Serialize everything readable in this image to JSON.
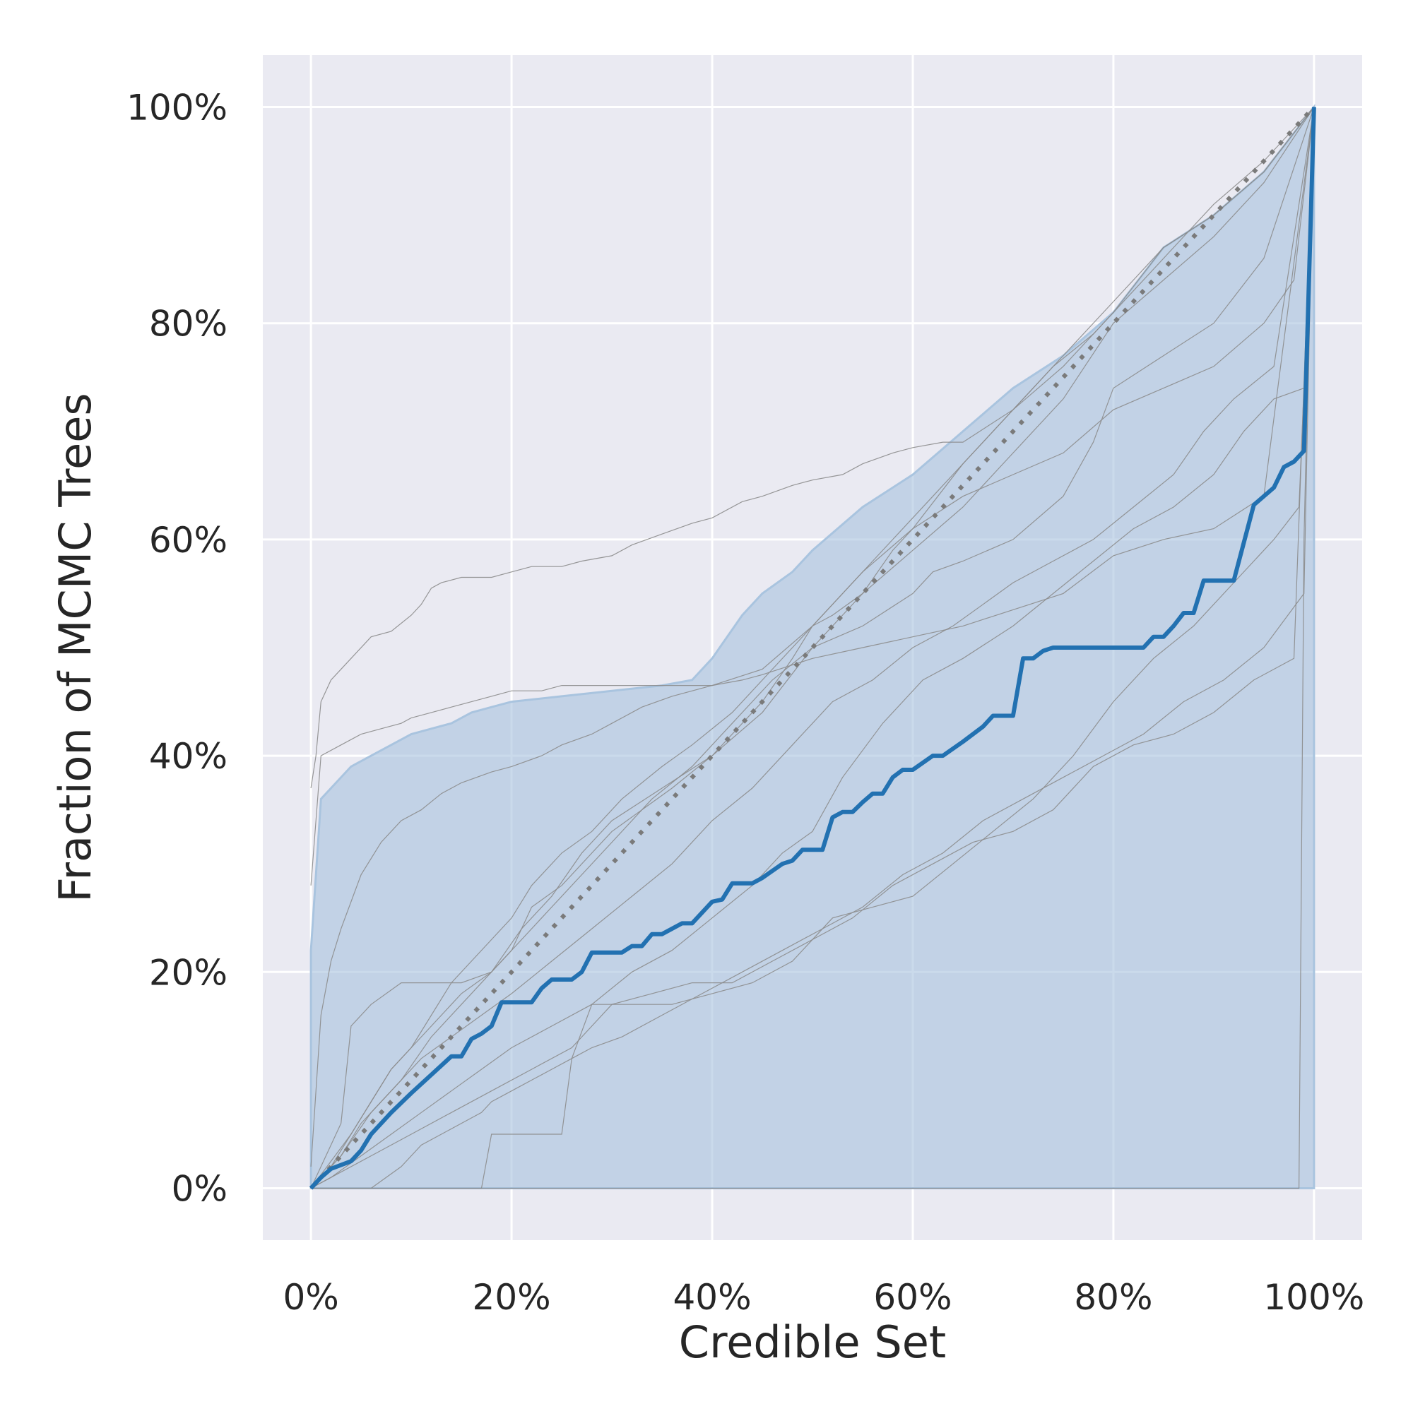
{
  "chart_data": {
    "type": "line",
    "title": "",
    "xlabel": "Credible Set",
    "ylabel": "Fraction of MCMC Trees",
    "xlim": [
      -0.048,
      1.048
    ],
    "ylim": [
      -0.048,
      1.048
    ],
    "x_ticks": [
      0,
      0.2,
      0.4,
      0.6,
      0.8,
      1.0
    ],
    "x_tick_labels": [
      "0%",
      "20%",
      "40%",
      "60%",
      "80%",
      "100%"
    ],
    "y_ticks": [
      0,
      0.2,
      0.4,
      0.6,
      0.8,
      1.0
    ],
    "y_tick_labels": [
      "0%",
      "20%",
      "40%",
      "60%",
      "80%",
      "100%"
    ],
    "grid": true,
    "legend": "none",
    "colors": {
      "plot_background": "#eaeaf2",
      "grid": "#ffffff",
      "mean_line": "#2271b1",
      "band_fill": "#a9c4df",
      "replicate_lines": "#8c8c8c",
      "reference_line": "#7a7a7a"
    },
    "reference_line": {
      "style": "dotted",
      "x": [
        0,
        1
      ],
      "y": [
        0,
        1
      ]
    },
    "band": {
      "x": [
        0,
        0.01,
        0.02,
        0.04,
        0.06,
        0.08,
        0.1,
        0.12,
        0.14,
        0.16,
        0.18,
        0.2,
        0.25,
        0.3,
        0.35,
        0.38,
        0.4,
        0.43,
        0.45,
        0.48,
        0.5,
        0.55,
        0.6,
        0.65,
        0.7,
        0.75,
        0.8,
        0.85,
        0.9,
        0.95,
        1.0
      ],
      "upper": [
        0.22,
        0.36,
        0.37,
        0.39,
        0.4,
        0.41,
        0.42,
        0.425,
        0.43,
        0.44,
        0.445,
        0.45,
        0.455,
        0.46,
        0.465,
        0.47,
        0.49,
        0.53,
        0.55,
        0.57,
        0.59,
        0.63,
        0.66,
        0.7,
        0.74,
        0.77,
        0.81,
        0.87,
        0.9,
        0.94,
        1.0
      ],
      "lower": [
        0,
        0,
        0,
        0,
        0,
        0,
        0,
        0,
        0,
        0,
        0,
        0,
        0,
        0,
        0,
        0,
        0,
        0,
        0,
        0,
        0,
        0,
        0,
        0,
        0,
        0,
        0,
        0,
        0,
        0,
        0
      ]
    },
    "series": [
      {
        "role": "mean",
        "x": [
          0,
          0.01,
          0.02,
          0.04,
          0.05,
          0.06,
          0.08,
          0.1,
          0.12,
          0.14,
          0.15,
          0.16,
          0.17,
          0.18,
          0.19,
          0.22,
          0.23,
          0.24,
          0.26,
          0.27,
          0.28,
          0.31,
          0.32,
          0.33,
          0.34,
          0.35,
          0.37,
          0.38,
          0.4,
          0.41,
          0.42,
          0.44,
          0.45,
          0.47,
          0.48,
          0.49,
          0.51,
          0.52,
          0.53,
          0.54,
          0.55,
          0.56,
          0.57,
          0.58,
          0.59,
          0.6,
          0.62,
          0.63,
          0.65,
          0.67,
          0.68,
          0.7,
          0.71,
          0.72,
          0.73,
          0.74,
          0.8,
          0.83,
          0.84,
          0.85,
          0.86,
          0.87,
          0.88,
          0.89,
          0.92,
          0.94,
          0.96,
          0.97,
          0.98,
          0.99,
          1.0
        ],
        "y": [
          0,
          0.01,
          0.018,
          0.025,
          0.035,
          0.05,
          0.07,
          0.088,
          0.105,
          0.122,
          0.122,
          0.138,
          0.143,
          0.15,
          0.172,
          0.172,
          0.185,
          0.193,
          0.193,
          0.2,
          0.218,
          0.218,
          0.224,
          0.224,
          0.235,
          0.235,
          0.245,
          0.245,
          0.265,
          0.267,
          0.282,
          0.282,
          0.287,
          0.3,
          0.303,
          0.313,
          0.313,
          0.343,
          0.348,
          0.348,
          0.357,
          0.365,
          0.365,
          0.38,
          0.387,
          0.387,
          0.4,
          0.4,
          0.413,
          0.427,
          0.437,
          0.437,
          0.49,
          0.49,
          0.497,
          0.5,
          0.5,
          0.5,
          0.51,
          0.51,
          0.52,
          0.532,
          0.532,
          0.562,
          0.562,
          0.632,
          0.648,
          0.667,
          0.672,
          0.682,
          1.0
        ]
      },
      {
        "role": "replicate",
        "x": [
          0,
          0.005,
          0.01,
          0.02,
          0.04,
          0.06,
          0.08,
          0.1,
          0.11,
          0.12,
          0.13,
          0.15,
          0.18,
          0.2,
          0.22,
          0.25,
          0.27,
          0.3,
          0.32,
          0.35,
          0.38,
          0.4,
          0.43,
          0.45,
          0.48,
          0.5,
          0.53,
          0.55,
          0.58,
          0.6,
          0.63,
          0.65,
          0.7,
          0.75,
          0.8,
          0.85,
          0.9,
          0.95,
          1.0
        ],
        "y": [
          0.37,
          0.4,
          0.45,
          0.47,
          0.49,
          0.51,
          0.515,
          0.53,
          0.54,
          0.555,
          0.56,
          0.565,
          0.565,
          0.57,
          0.575,
          0.575,
          0.58,
          0.585,
          0.595,
          0.605,
          0.615,
          0.62,
          0.635,
          0.64,
          0.65,
          0.655,
          0.66,
          0.67,
          0.68,
          0.685,
          0.69,
          0.69,
          0.72,
          0.76,
          0.81,
          0.87,
          0.9,
          0.94,
          1.0
        ]
      },
      {
        "role": "replicate",
        "x": [
          0,
          0.01,
          0.03,
          0.05,
          0.07,
          0.09,
          0.1,
          0.12,
          0.14,
          0.16,
          0.18,
          0.2,
          0.23,
          0.25,
          0.28,
          0.3,
          0.35,
          0.4,
          0.45,
          0.5,
          0.55,
          0.6,
          0.65,
          0.7,
          0.75,
          0.8,
          0.85,
          0.9,
          0.95,
          1.0
        ],
        "y": [
          0.28,
          0.4,
          0.41,
          0.42,
          0.425,
          0.43,
          0.435,
          0.44,
          0.445,
          0.45,
          0.455,
          0.46,
          0.46,
          0.465,
          0.465,
          0.465,
          0.465,
          0.465,
          0.48,
          0.52,
          0.57,
          0.61,
          0.67,
          0.72,
          0.77,
          0.82,
          0.87,
          0.9,
          0.94,
          1.0
        ]
      },
      {
        "role": "replicate",
        "x": [
          0,
          0.01,
          0.02,
          0.03,
          0.05,
          0.07,
          0.09,
          0.11,
          0.13,
          0.15,
          0.18,
          0.2,
          0.23,
          0.25,
          0.28,
          0.3,
          0.33,
          0.36,
          0.4,
          0.43,
          0.45,
          0.5,
          0.55,
          0.6,
          0.65,
          0.7,
          0.75,
          0.8,
          0.85,
          0.9,
          0.95,
          1.0
        ],
        "y": [
          0.02,
          0.16,
          0.21,
          0.24,
          0.29,
          0.32,
          0.34,
          0.35,
          0.365,
          0.375,
          0.385,
          0.39,
          0.4,
          0.41,
          0.42,
          0.43,
          0.445,
          0.455,
          0.465,
          0.47,
          0.475,
          0.49,
          0.5,
          0.51,
          0.52,
          0.535,
          0.55,
          0.585,
          0.6,
          0.61,
          0.64,
          1.0
        ]
      },
      {
        "role": "replicate",
        "x": [
          0,
          0.04,
          0.06,
          0.08,
          0.1,
          0.12,
          0.15,
          0.18,
          0.2,
          0.22,
          0.25,
          0.28,
          0.3,
          0.33,
          0.36,
          0.4,
          0.45,
          0.48,
          0.5,
          0.52,
          0.55,
          0.58,
          0.6,
          0.65,
          0.7,
          0.75,
          0.8,
          0.85,
          0.9,
          0.95,
          0.98,
          1.0
        ],
        "y": [
          0,
          0.05,
          0.08,
          0.11,
          0.13,
          0.15,
          0.18,
          0.2,
          0.22,
          0.26,
          0.28,
          0.31,
          0.33,
          0.35,
          0.37,
          0.4,
          0.45,
          0.49,
          0.52,
          0.53,
          0.55,
          0.59,
          0.61,
          0.64,
          0.66,
          0.68,
          0.72,
          0.74,
          0.76,
          0.8,
          0.84,
          1.0
        ]
      },
      {
        "role": "replicate",
        "x": [
          0,
          0.02,
          0.04,
          0.06,
          0.08,
          0.1,
          0.12,
          0.14,
          0.16,
          0.18,
          0.2,
          0.22,
          0.25,
          0.28,
          0.31,
          0.35,
          0.38,
          0.42,
          0.46,
          0.5,
          0.54,
          0.58,
          0.62,
          0.66,
          0.7,
          0.74,
          0.78,
          0.82,
          0.86,
          0.9,
          0.95,
          1.0
        ],
        "y": [
          0,
          0.02,
          0.05,
          0.08,
          0.11,
          0.13,
          0.16,
          0.19,
          0.21,
          0.23,
          0.25,
          0.28,
          0.31,
          0.33,
          0.36,
          0.39,
          0.41,
          0.44,
          0.48,
          0.52,
          0.56,
          0.6,
          0.64,
          0.68,
          0.72,
          0.76,
          0.79,
          0.83,
          0.87,
          0.91,
          0.95,
          1.0
        ]
      },
      {
        "role": "replicate",
        "x": [
          0,
          0.03,
          0.06,
          0.09,
          0.12,
          0.15,
          0.18,
          0.21,
          0.24,
          0.27,
          0.3,
          0.34,
          0.38,
          0.42,
          0.46,
          0.5,
          0.55,
          0.6,
          0.65,
          0.7,
          0.75,
          0.8,
          0.85,
          0.9,
          0.95,
          1.0
        ],
        "y": [
          0,
          0.03,
          0.07,
          0.1,
          0.14,
          0.17,
          0.2,
          0.23,
          0.26,
          0.29,
          0.32,
          0.36,
          0.39,
          0.43,
          0.47,
          0.5,
          0.55,
          0.59,
          0.63,
          0.68,
          0.73,
          0.8,
          0.84,
          0.88,
          0.93,
          1.0
        ]
      },
      {
        "role": "replicate",
        "x": [
          0,
          0.03,
          0.04,
          0.06,
          0.09,
          0.12,
          0.15,
          0.18,
          0.21,
          0.24,
          0.27,
          0.3,
          0.35,
          0.4,
          0.45,
          0.5,
          0.55,
          0.6,
          0.62,
          0.65,
          0.7,
          0.75,
          0.78,
          0.8,
          0.85,
          0.9,
          0.95,
          1.0
        ],
        "y": [
          0,
          0.06,
          0.15,
          0.17,
          0.19,
          0.19,
          0.19,
          0.2,
          0.24,
          0.27,
          0.31,
          0.34,
          0.37,
          0.4,
          0.44,
          0.5,
          0.52,
          0.55,
          0.57,
          0.58,
          0.6,
          0.64,
          0.69,
          0.74,
          0.77,
          0.8,
          0.86,
          1.0
        ]
      },
      {
        "role": "replicate",
        "x": [
          0,
          0.03,
          0.05,
          0.08,
          0.11,
          0.14,
          0.17,
          0.2,
          0.24,
          0.28,
          0.32,
          0.36,
          0.4,
          0.44,
          0.48,
          0.52,
          0.56,
          0.6,
          0.64,
          0.67,
          0.7,
          0.74,
          0.78,
          0.82,
          0.86,
          0.89,
          0.92,
          0.96,
          1.0
        ],
        "y": [
          0,
          0.03,
          0.06,
          0.09,
          0.12,
          0.14,
          0.16,
          0.18,
          0.21,
          0.24,
          0.27,
          0.3,
          0.34,
          0.37,
          0.41,
          0.45,
          0.47,
          0.5,
          0.52,
          0.54,
          0.56,
          0.58,
          0.6,
          0.63,
          0.66,
          0.7,
          0.73,
          0.76,
          1.0
        ]
      },
      {
        "role": "replicate",
        "x": [
          0,
          0.02,
          0.05,
          0.08,
          0.11,
          0.14,
          0.17,
          0.2,
          0.24,
          0.28,
          0.32,
          0.36,
          0.4,
          0.44,
          0.47,
          0.5,
          0.53,
          0.57,
          0.61,
          0.65,
          0.7,
          0.74,
          0.78,
          0.82,
          0.86,
          0.9,
          0.93,
          0.96,
          0.99,
          1.0
        ],
        "y": [
          0,
          0.01,
          0.03,
          0.05,
          0.07,
          0.09,
          0.11,
          0.13,
          0.15,
          0.17,
          0.2,
          0.22,
          0.25,
          0.28,
          0.31,
          0.33,
          0.38,
          0.43,
          0.47,
          0.49,
          0.52,
          0.55,
          0.58,
          0.61,
          0.63,
          0.66,
          0.7,
          0.73,
          0.74,
          1.0
        ]
      },
      {
        "role": "replicate",
        "x": [
          0,
          0.02,
          0.06,
          0.1,
          0.14,
          0.18,
          0.22,
          0.26,
          0.28,
          0.3,
          0.34,
          0.38,
          0.42,
          0.46,
          0.5,
          0.54,
          0.58,
          0.62,
          0.66,
          0.7,
          0.74,
          0.78,
          0.82,
          0.86,
          0.9,
          0.94,
          0.98,
          1.0
        ],
        "y": [
          0,
          0.01,
          0.03,
          0.05,
          0.07,
          0.09,
          0.11,
          0.13,
          0.15,
          0.17,
          0.18,
          0.19,
          0.19,
          0.21,
          0.23,
          0.25,
          0.28,
          0.3,
          0.32,
          0.33,
          0.35,
          0.39,
          0.41,
          0.42,
          0.44,
          0.47,
          0.49,
          1.0
        ]
      },
      {
        "role": "replicate",
        "x": [
          0,
          0.06,
          0.09,
          0.11,
          0.13,
          0.15,
          0.17,
          0.18,
          0.2,
          0.22,
          0.24,
          0.26,
          0.28,
          0.31,
          0.35,
          0.39,
          0.43,
          0.47,
          0.51,
          0.55,
          0.59,
          0.63,
          0.67,
          0.71,
          0.75,
          0.79,
          0.83,
          0.87,
          0.91,
          0.95,
          0.99,
          1.0
        ],
        "y": [
          0,
          0,
          0.02,
          0.04,
          0.05,
          0.06,
          0.07,
          0.08,
          0.09,
          0.1,
          0.11,
          0.12,
          0.13,
          0.14,
          0.16,
          0.18,
          0.2,
          0.22,
          0.24,
          0.26,
          0.29,
          0.31,
          0.34,
          0.36,
          0.38,
          0.4,
          0.42,
          0.45,
          0.47,
          0.5,
          0.55,
          1.0
        ]
      },
      {
        "role": "replicate",
        "x": [
          0,
          0.17,
          0.18,
          0.25,
          0.26,
          0.28,
          0.36,
          0.4,
          0.44,
          0.48,
          0.52,
          0.56,
          0.6,
          0.64,
          0.68,
          0.72,
          0.76,
          0.8,
          0.84,
          0.88,
          0.92,
          0.96,
          0.985,
          0.99,
          1.0
        ],
        "y": [
          0,
          0,
          0.05,
          0.05,
          0.12,
          0.17,
          0.17,
          0.18,
          0.19,
          0.21,
          0.25,
          0.26,
          0.27,
          0.3,
          0.33,
          0.36,
          0.4,
          0.45,
          0.49,
          0.52,
          0.56,
          0.6,
          0.63,
          0.74,
          1.0
        ]
      },
      {
        "role": "replicate",
        "x": [
          0,
          0.985,
          0.99,
          1.0
        ],
        "y": [
          0,
          0,
          0.6,
          1.0
        ]
      }
    ]
  }
}
